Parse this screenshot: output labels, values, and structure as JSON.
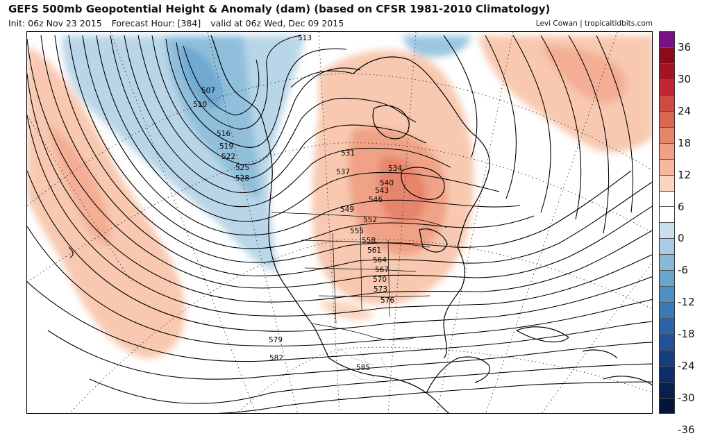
{
  "header": {
    "title": "GEFS 500mb Geopotential Height & Anomaly (dam) (based on CFSR 1981-2010 Climatology)",
    "init": "Init: 06z Nov 23 2015",
    "forecast_hour": "Forecast Hour: [384]",
    "valid": "valid at 06z Wed, Dec 09 2015",
    "credit": "Levi Cowan | tropicaltidbits.com"
  },
  "map": {
    "region": "North America and North Pacific",
    "contour_labels": [
      "507",
      "510",
      "513",
      "516",
      "519",
      "522",
      "525",
      "528",
      "531",
      "534",
      "537",
      "540",
      "543",
      "546",
      "549",
      "552",
      "555",
      "558",
      "561",
      "564",
      "567",
      "570",
      "573",
      "576",
      "579",
      "582",
      "585"
    ]
  },
  "colorbar": {
    "labels": [
      "36",
      "30",
      "24",
      "18",
      "12",
      "6",
      "0",
      "-6",
      "-12",
      "-18",
      "-24",
      "-30",
      "-36"
    ],
    "colors": [
      "#7b0f84",
      "#8c0a1c",
      "#a51424",
      "#bf2832",
      "#cf4a42",
      "#dc6654",
      "#e7846c",
      "#efa086",
      "#f5b9a0",
      "#fbd4c0",
      "#ffffff",
      "#ffffff",
      "#c8dfec",
      "#a8cce2",
      "#88b8d8",
      "#6aa4ce",
      "#4f8fc3",
      "#3a7ab6",
      "#2c65a6",
      "#215295",
      "#173f80",
      "#0f2d69",
      "#08204e",
      "#041539"
    ]
  }
}
